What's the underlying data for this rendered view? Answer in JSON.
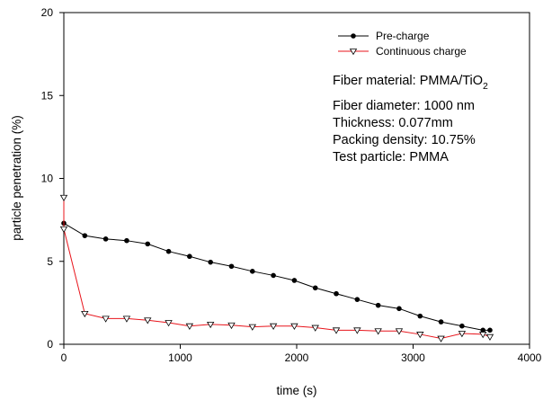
{
  "chart_data": {
    "type": "line",
    "title": "",
    "xlabel": "time (s)",
    "ylabel": "particle penetration (%)",
    "xlim": [
      0,
      4000
    ],
    "ylim": [
      0,
      20
    ],
    "x_ticks": [
      "0",
      "1000",
      "2000",
      "3000",
      "4000"
    ],
    "y_ticks": [
      "0",
      "5",
      "10",
      "15",
      "20"
    ],
    "grid": false,
    "legend_position": "top-right",
    "series": [
      {
        "name": "Pre-charge",
        "color": "#000000",
        "marker": "filled-circle",
        "x": [
          0,
          180,
          360,
          540,
          720,
          900,
          1080,
          1260,
          1440,
          1620,
          1800,
          1980,
          2160,
          2340,
          2520,
          2700,
          2880,
          3060,
          3240,
          3420,
          3600,
          3660
        ],
        "y": [
          7.3,
          6.55,
          6.35,
          6.25,
          6.05,
          5.6,
          5.3,
          4.95,
          4.7,
          4.4,
          4.15,
          3.85,
          3.4,
          3.05,
          2.7,
          2.35,
          2.15,
          1.7,
          1.35,
          1.1,
          0.85,
          0.85
        ]
      },
      {
        "name": "Continuous charge",
        "color": "#e8141b",
        "marker": "hollow-triangle-down",
        "x": [
          0,
          0,
          180,
          360,
          540,
          720,
          900,
          1080,
          1260,
          1440,
          1620,
          1800,
          1980,
          2160,
          2340,
          2520,
          2700,
          2880,
          3060,
          3240,
          3420,
          3600,
          3660
        ],
        "y": [
          8.85,
          6.95,
          1.85,
          1.55,
          1.55,
          1.45,
          1.3,
          1.1,
          1.2,
          1.15,
          1.05,
          1.1,
          1.1,
          1.0,
          0.85,
          0.85,
          0.8,
          0.8,
          0.6,
          0.35,
          0.65,
          0.6,
          0.45
        ]
      }
    ],
    "annotations": {
      "material_prefix": "Fiber material: PMMA/TiO",
      "material_subscript": "2",
      "lines": [
        "Fiber diameter: 1000 nm",
        "Thickness: 0.077mm",
        "Packing density: 10.75%",
        "Test particle: PMMA"
      ]
    }
  }
}
